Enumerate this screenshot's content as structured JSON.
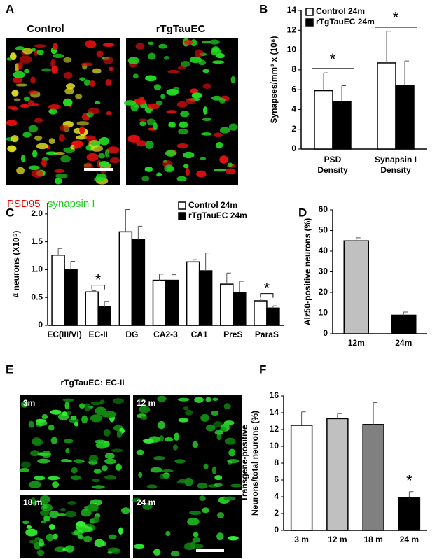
{
  "panels": [
    "A",
    "B",
    "C",
    "D",
    "E",
    "F"
  ],
  "panel_a": {
    "labels": [
      "Control",
      "rTgTauEC"
    ],
    "legend": [
      "PSD95",
      "synapsin I"
    ]
  },
  "panel_e": {
    "title": "rTgTauEC: EC-II",
    "labels": [
      "3m",
      "12 m",
      "18 m",
      "24 m"
    ]
  },
  "chart_data": [
    {
      "type": "bar",
      "ylabel": "Synapses/mm³ x (10⁸)",
      "categories": [
        [
          "PSD",
          "Density"
        ],
        [
          "Synapsin I",
          "Density"
        ]
      ],
      "series": [
        {
          "name": "Control 24m",
          "color": "#ffffff",
          "values": [
            5.9,
            8.7
          ],
          "errors": [
            1.8,
            3.2
          ]
        },
        {
          "name": "rTgTauEC 24m",
          "color": "#000000",
          "values": [
            4.8,
            6.4
          ],
          "errors": [
            1.6,
            2.5
          ]
        }
      ],
      "ylim": [
        0,
        14
      ],
      "yticks": [
        0,
        2,
        4,
        6,
        8,
        10,
        12,
        14
      ],
      "annotations": [
        "*",
        "*"
      ]
    },
    {
      "type": "bar",
      "ylabel": "# neurons (X10⁵)",
      "categories": [
        "EC(III/VI)",
        "EC-II",
        "DG",
        "CA2-3",
        "CA1",
        "PreS",
        "ParaS"
      ],
      "series": [
        {
          "name": "Control 24m",
          "color": "#ffffff",
          "values": [
            1.26,
            0.6,
            1.68,
            0.81,
            1.14,
            0.74,
            0.44
          ],
          "errors": [
            0.12,
            0.02,
            0.4,
            0.11,
            0.04,
            0.2,
            0.03
          ]
        },
        {
          "name": "rTgTauEC 24m",
          "color": "#000000",
          "values": [
            1.0,
            0.33,
            1.54,
            0.81,
            0.98,
            0.59,
            0.31
          ],
          "errors": [
            0.15,
            0.1,
            0.24,
            0.1,
            0.32,
            0.2,
            0.04
          ]
        }
      ],
      "ylim": [
        0,
        2.2
      ],
      "yticks": [
        0,
        0.5,
        {
          "value": 1,
          "label": "1.0"
        },
        1.5,
        {
          "value": 2,
          "label": "2.0"
        }
      ],
      "annotations": [
        "*",
        "*"
      ]
    },
    {
      "type": "bar",
      "ylabel": "Alz50-positive neurons (%)",
      "categories": [
        "12m",
        "24m"
      ],
      "series": [
        {
          "colors": [
            "#c0c0c0",
            "#000000"
          ],
          "values": [
            45,
            9
          ],
          "errors": [
            1.5,
            1.5
          ]
        }
      ],
      "ylim": [
        0,
        60
      ],
      "yticks": [
        0,
        10,
        20,
        30,
        40,
        50,
        60
      ]
    },
    {
      "type": "bar",
      "ylabel": [
        "Transgene-positive",
        "Neurons/total neurons (%)"
      ],
      "categories": [
        "3 m",
        "12 m",
        "18 m",
        "24 m"
      ],
      "series": [
        {
          "colors": [
            "#ffffff",
            "#c0c0c0",
            "#808080",
            "#000000"
          ],
          "values": [
            12.5,
            13.3,
            12.6,
            3.9
          ],
          "errors": [
            1.6,
            0.6,
            2.6,
            0.7
          ]
        }
      ],
      "ylim": [
        0,
        16
      ],
      "yticks": [
        0,
        2,
        4,
        6,
        8,
        10,
        12,
        14,
        16
      ],
      "annotations": [
        "*"
      ]
    }
  ]
}
